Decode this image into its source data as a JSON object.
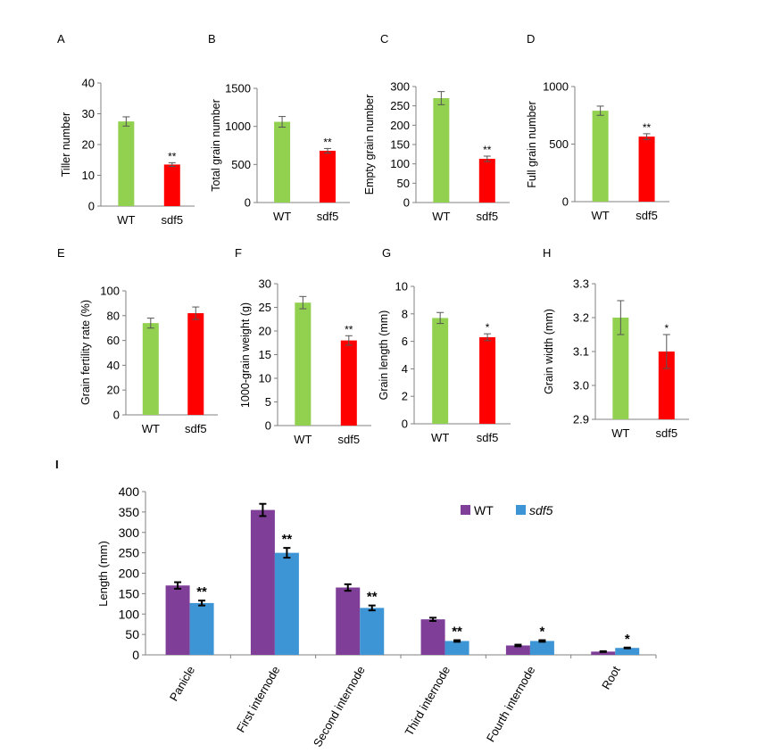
{
  "colors": {
    "wt_small": "#92d050",
    "sdf5_small": "#ff0000",
    "wt_bar": "#7f3f98",
    "sdf5_bar": "#3e95d6",
    "axis": "#808080",
    "error": "#000000"
  },
  "chart_data": [
    {
      "panel": "A",
      "type": "bar",
      "categories": [
        "WT",
        "sdf5"
      ],
      "values": [
        27.5,
        13.5
      ],
      "errors": [
        1.5,
        0.6
      ],
      "marks": [
        "",
        "**"
      ],
      "ylabel": "Tiller number",
      "ylim": [
        0,
        40
      ],
      "yticks": [
        "0",
        "10",
        "20",
        "30",
        "40"
      ]
    },
    {
      "panel": "B",
      "type": "bar",
      "categories": [
        "WT",
        "sdf5"
      ],
      "values": [
        1060,
        680
      ],
      "errors": [
        70,
        30
      ],
      "marks": [
        "",
        "**"
      ],
      "ylabel": "Total grain number",
      "ylim": [
        0,
        1500
      ],
      "yticks": [
        "0",
        "500",
        "1000",
        "1500"
      ]
    },
    {
      "panel": "C",
      "type": "bar",
      "categories": [
        "WT",
        "sdf5"
      ],
      "values": [
        270,
        113
      ],
      "errors": [
        17,
        7
      ],
      "marks": [
        "",
        "**"
      ],
      "ylabel": "Empty grain number",
      "ylim": [
        0,
        300
      ],
      "yticks": [
        "0",
        "50",
        "100",
        "150",
        "200",
        "250",
        "300"
      ]
    },
    {
      "panel": "D",
      "type": "bar",
      "categories": [
        "WT",
        "sdf5"
      ],
      "values": [
        790,
        565
      ],
      "errors": [
        40,
        25
      ],
      "marks": [
        "",
        "**"
      ],
      "ylabel": "Full grain number",
      "ylim": [
        0,
        1000
      ],
      "yticks": [
        "0",
        "500",
        "1000"
      ]
    },
    {
      "panel": "E",
      "type": "bar",
      "categories": [
        "WT",
        "sdf5"
      ],
      "values": [
        74,
        82
      ],
      "errors": [
        4,
        5
      ],
      "marks": [
        "",
        ""
      ],
      "ylabel": "Grain fertility rate (%)",
      "ylim": [
        0,
        100
      ],
      "yticks": [
        "0",
        "20",
        "40",
        "60",
        "80",
        "100"
      ]
    },
    {
      "panel": "F",
      "type": "bar",
      "categories": [
        "WT",
        "sdf5"
      ],
      "values": [
        26,
        18
      ],
      "errors": [
        1.3,
        1
      ],
      "marks": [
        "",
        "**"
      ],
      "ylabel": "1000-grain weight (g)",
      "ylim": [
        0,
        30
      ],
      "yticks": [
        "0",
        "5",
        "10",
        "15",
        "20",
        "25",
        "30"
      ]
    },
    {
      "panel": "G",
      "type": "bar",
      "categories": [
        "WT",
        "sdf5"
      ],
      "values": [
        7.7,
        6.3
      ],
      "errors": [
        0.4,
        0.25
      ],
      "marks": [
        "",
        "*"
      ],
      "ylabel": "Grain length (mm)",
      "ylim": [
        0,
        10
      ],
      "yticks": [
        "0",
        "2",
        "4",
        "6",
        "8",
        "10"
      ]
    },
    {
      "panel": "H",
      "type": "bar",
      "categories": [
        "WT",
        "sdf5"
      ],
      "values": [
        3.2,
        3.1
      ],
      "errors": [
        0.05,
        0.05
      ],
      "marks": [
        "",
        "*"
      ],
      "ylabel": "Grain width (mm)",
      "ylim": [
        2.9,
        3.3
      ],
      "yticks": [
        "2.9",
        "3.0",
        "3.1",
        "3.2",
        "3.3"
      ]
    },
    {
      "panel": "I",
      "type": "bar",
      "ylabel": "Length (mm)",
      "ylim": [
        0,
        400
      ],
      "yticks": [
        "0",
        "50",
        "100",
        "150",
        "200",
        "250",
        "300",
        "350",
        "400"
      ],
      "categories": [
        "Panicle",
        "First internode",
        "Second internode",
        "Third internode",
        "Fourth internode",
        "Root"
      ],
      "series": [
        {
          "name": "WT",
          "values": [
            170,
            355,
            165,
            87,
            23,
            8
          ],
          "errors": [
            8,
            15,
            8,
            4,
            2,
            1
          ]
        },
        {
          "name": "sdf5",
          "values": [
            127,
            250,
            115,
            34,
            34,
            17
          ],
          "errors": [
            6,
            12,
            6,
            2,
            2,
            1
          ]
        }
      ],
      "marks": [
        "**",
        "**",
        "**",
        "**",
        "*",
        "*"
      ]
    }
  ]
}
